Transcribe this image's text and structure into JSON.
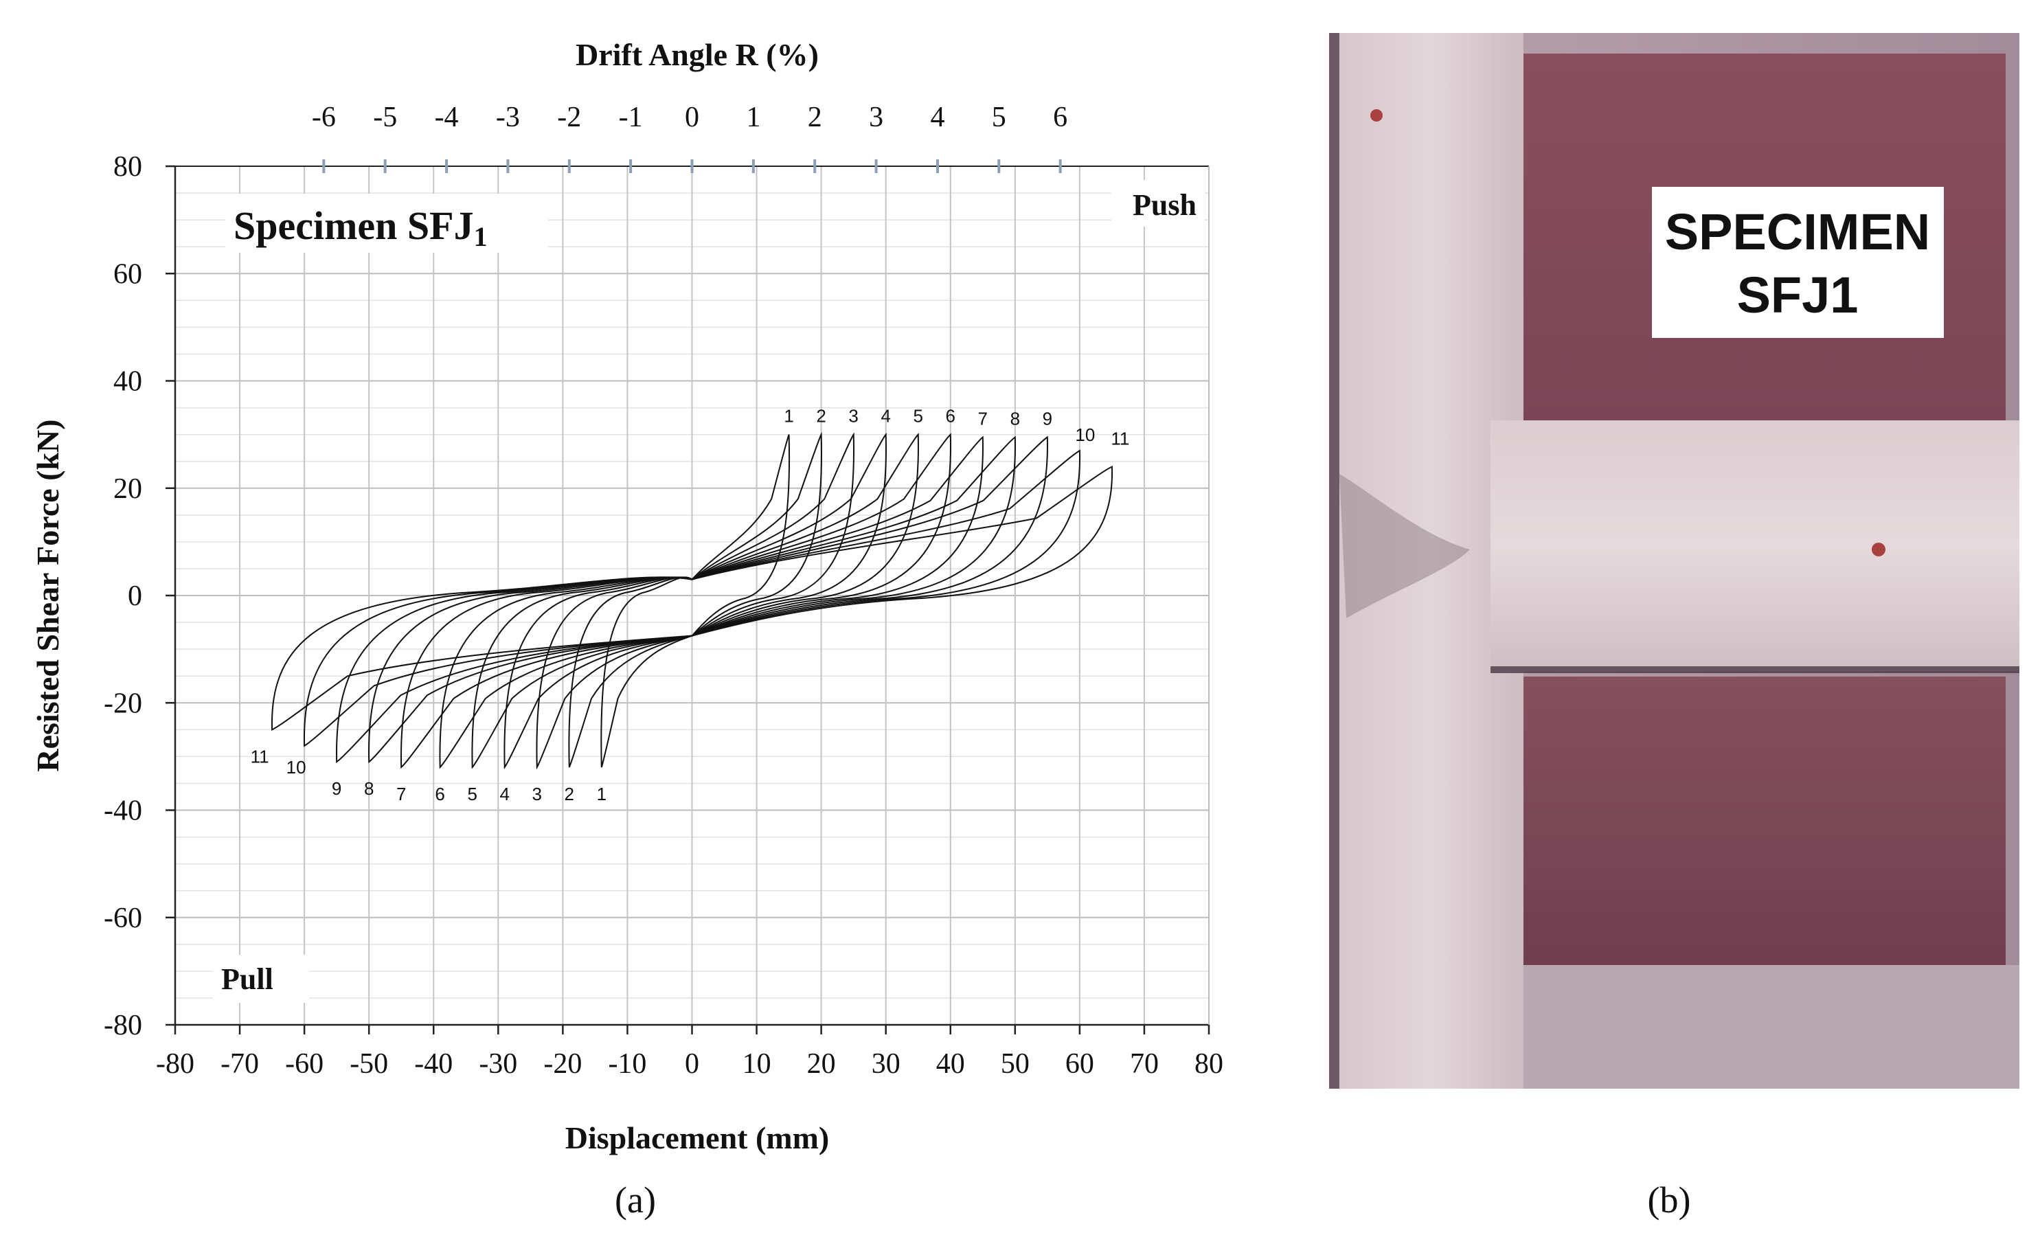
{
  "chart_data": {
    "type": "line",
    "specimen_label": "Specimen SFJ",
    "specimen_subscript": "1",
    "xlabel": "Displacement (mm)",
    "ylabel": "Resisted Shear Force (kN)",
    "top_axis_label": "Drift Angle R (%)",
    "xlim": [
      -80,
      80
    ],
    "ylim": [
      -80,
      80
    ],
    "xticks": [
      "-80",
      "-70",
      "-60",
      "-50",
      "-40",
      "-30",
      "-20",
      "-10",
      "0",
      "10",
      "20",
      "30",
      "40",
      "50",
      "60",
      "70",
      "80"
    ],
    "yticks": [
      "80",
      "60",
      "40",
      "20",
      "0",
      "-20",
      "-40",
      "-60",
      "-80"
    ],
    "drift_ticks": [
      {
        "label": "-6",
        "disp": -57
      },
      {
        "label": "-5",
        "disp": -47.5
      },
      {
        "label": "-4",
        "disp": -38
      },
      {
        "label": "-3",
        "disp": -28.5
      },
      {
        "label": "-2",
        "disp": -19
      },
      {
        "label": "-1",
        "disp": -9.5
      },
      {
        "label": "0",
        "disp": 0
      },
      {
        "label": "1",
        "disp": 9.5
      },
      {
        "label": "2",
        "disp": 19
      },
      {
        "label": "3",
        "disp": 28.5
      },
      {
        "label": "4",
        "disp": 38
      },
      {
        "label": "5",
        "disp": 47.5
      },
      {
        "label": "6",
        "disp": 57
      }
    ],
    "grid": true,
    "push_label": "Push",
    "pull_label": "Pull",
    "cycles": [
      {
        "label": "1",
        "pos_peak": [
          15,
          30
        ],
        "neg_peak": [
          -14,
          -32
        ]
      },
      {
        "label": "2",
        "pos_peak": [
          20,
          30
        ],
        "neg_peak": [
          -19,
          -32
        ]
      },
      {
        "label": "3",
        "pos_peak": [
          25,
          30
        ],
        "neg_peak": [
          -24,
          -32
        ]
      },
      {
        "label": "4",
        "pos_peak": [
          30,
          30
        ],
        "neg_peak": [
          -29,
          -32
        ]
      },
      {
        "label": "5",
        "pos_peak": [
          35,
          30
        ],
        "neg_peak": [
          -34,
          -32
        ]
      },
      {
        "label": "6",
        "pos_peak": [
          40,
          30
        ],
        "neg_peak": [
          -39,
          -32
        ]
      },
      {
        "label": "7",
        "pos_peak": [
          45,
          29.5
        ],
        "neg_peak": [
          -45,
          -32
        ]
      },
      {
        "label": "8",
        "pos_peak": [
          50,
          29.5
        ],
        "neg_peak": [
          -50,
          -31
        ]
      },
      {
        "label": "9",
        "pos_peak": [
          55,
          29.5
        ],
        "neg_peak": [
          -55,
          -31
        ]
      },
      {
        "label": "10",
        "pos_peak": [
          60,
          27
        ],
        "neg_peak": [
          -60,
          -28
        ]
      },
      {
        "label": "11",
        "pos_peak": [
          65,
          24
        ],
        "neg_peak": [
          -65,
          -25
        ]
      }
    ]
  },
  "photo": {
    "sign_line1": "SPECIMEN",
    "sign_line2": "SFJ1"
  },
  "captions": {
    "a": "(a)",
    "b": "(b)"
  }
}
